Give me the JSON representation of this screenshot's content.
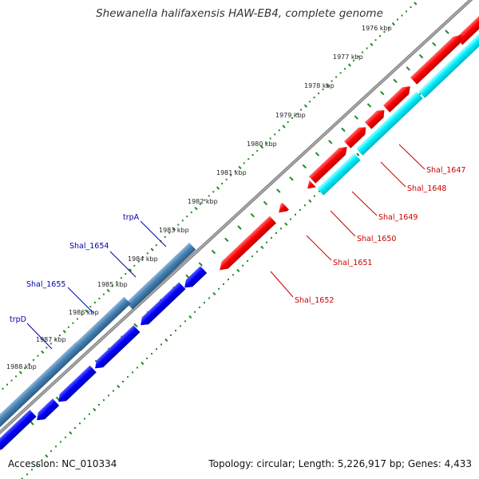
{
  "title": "Shewanella halifaxensis HAW-EB4, complete genome",
  "footer": {
    "accession": "Accession: NC_010334",
    "summary": "Topology: circular; Length: 5,226,917 bp; Genes: 4,433"
  },
  "ticks": [
    "1976 kbp",
    "1977 kbp",
    "1978 kbp",
    "1979 kbp",
    "1980 kbp",
    "1981 kbp",
    "1982 kbp",
    "1983 kbp",
    "1984 kbp",
    "1985 kbp",
    "1986 kbp",
    "1987 kbp",
    "1988 kbp"
  ],
  "genes_right": [
    "Shal_1647",
    "Shal_1648",
    "Shal_1649",
    "Shal_1650",
    "Shal_1651",
    "Shal_1652"
  ],
  "genes_left": [
    "trpA",
    "Shal_1654",
    "Shal_1655",
    "trpD"
  ],
  "colors": {
    "forward_cds": "#ff0000",
    "forward_rna": "#00ffff",
    "reverse_cds": "#0000ff",
    "reverse_rna": "#4682b4",
    "backbone": "#808080",
    "tick_dots": "#228b22",
    "right_label": "#cc0000",
    "left_label": "#0000aa"
  }
}
